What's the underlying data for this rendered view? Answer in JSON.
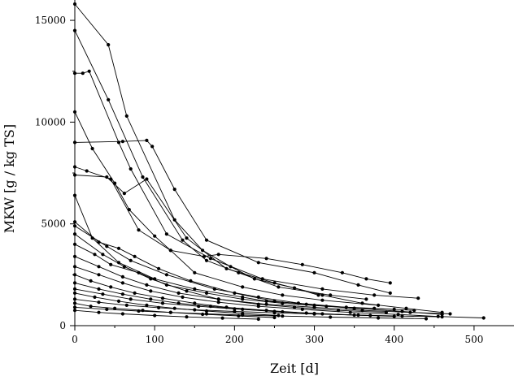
{
  "chart_data": {
    "type": "line",
    "title": "",
    "xlabel": "Zeit [d]",
    "ylabel": "MKW [g / kg TS]",
    "xlim": [
      0,
      550
    ],
    "ylim": [
      0,
      16000
    ],
    "x_ticks": [
      0,
      100,
      200,
      300,
      400,
      500
    ],
    "y_ticks": [
      0,
      5000,
      10000,
      15000
    ],
    "x_tick_labels": [
      "0",
      "100",
      "200",
      "300",
      "400",
      "500"
    ],
    "y_tick_labels": [
      "0",
      "5000",
      "10000",
      "15000"
    ],
    "grid": false,
    "legend": false,
    "line_color": "#000000",
    "series": [
      {
        "x": [
          0,
          42,
          65,
          125,
          160,
          195,
          225,
          275,
          305
        ],
        "y": [
          15800,
          13800,
          10300,
          5200,
          3700,
          2900,
          2300,
          1850,
          1500
        ]
      },
      {
        "x": [
          0,
          42,
          85,
          135,
          165,
          205,
          255,
          320,
          365
        ],
        "y": [
          14500,
          11100,
          7300,
          4200,
          3200,
          2600,
          1900,
          1500,
          1300
        ]
      },
      {
        "x": [
          0,
          10,
          18,
          55,
          70,
          115,
          170,
          235,
          310,
          375,
          430
        ],
        "y": [
          12400,
          12400,
          12500,
          9000,
          7700,
          4500,
          3300,
          2300,
          1800,
          1500,
          1350
        ]
      },
      {
        "x": [
          0,
          22,
          50,
          68,
          100,
          120,
          150,
          210,
          260,
          310,
          380
        ],
        "y": [
          10500,
          8700,
          7000,
          5700,
          4400,
          3700,
          2600,
          1900,
          1500,
          1250,
          1000
        ]
      },
      {
        "x": [
          0,
          60,
          90,
          97,
          125,
          165,
          230,
          300,
          355,
          395
        ],
        "y": [
          9000,
          9050,
          9100,
          8800,
          6700,
          4200,
          3100,
          2600,
          2000,
          1600
        ]
      },
      {
        "x": [
          0,
          15,
          45,
          80,
          120,
          162,
          180,
          240,
          285,
          335,
          365,
          395
        ],
        "y": [
          7800,
          7600,
          7200,
          4700,
          3700,
          3400,
          3500,
          3300,
          3000,
          2600,
          2300,
          2100
        ]
      },
      {
        "x": [
          0,
          40,
          62,
          90,
          140,
          190,
          250,
          310,
          360,
          415,
          460
        ],
        "y": [
          7400,
          7300,
          6500,
          7200,
          4300,
          2800,
          2100,
          1500,
          1100,
          850,
          650
        ]
      },
      {
        "x": [
          0,
          22,
          55,
          100,
          150,
          210,
          240,
          280,
          340,
          400
        ],
        "y": [
          6400,
          4300,
          3100,
          2300,
          1800,
          1400,
          1200,
          1100,
          900,
          800
        ]
      },
      {
        "x": [
          0,
          30,
          55,
          75,
          105,
          145,
          200,
          250,
          300,
          350
        ],
        "y": [
          5100,
          4100,
          3800,
          3400,
          2800,
          2200,
          1600,
          1200,
          1000,
          850
        ]
      },
      {
        "x": [
          0,
          40,
          70,
          115,
          175,
          230,
          290,
          350,
          410,
          460
        ],
        "y": [
          4900,
          3900,
          3200,
          2500,
          1800,
          1400,
          1050,
          850,
          700,
          550
        ]
      },
      {
        "x": [
          0,
          35,
          62,
          95,
          140,
          180,
          230,
          275,
          330,
          390
        ],
        "y": [
          4500,
          3500,
          2900,
          2300,
          1700,
          1300,
          1050,
          900,
          750,
          650
        ]
      },
      {
        "x": [
          0,
          25,
          45,
          80,
          115,
          165,
          210,
          260,
          315,
          375,
          425
        ],
        "y": [
          4000,
          3500,
          3000,
          2600,
          2000,
          1600,
          1300,
          1100,
          950,
          850,
          750
        ]
      },
      {
        "x": [
          0,
          30,
          60,
          90,
          130,
          180,
          240,
          300,
          360,
          420,
          470
        ],
        "y": [
          3400,
          2900,
          2400,
          2000,
          1600,
          1300,
          1050,
          900,
          750,
          650,
          580
        ]
      },
      {
        "x": [
          0,
          30,
          60,
          95,
          135,
          180,
          230,
          285,
          345,
          405,
          455,
          512
        ],
        "y": [
          2900,
          2500,
          2100,
          1700,
          1400,
          1150,
          950,
          800,
          650,
          550,
          450,
          380
        ]
      },
      {
        "x": [
          0,
          20,
          45,
          75,
          110,
          150,
          190,
          240,
          290
        ],
        "y": [
          2500,
          2200,
          1900,
          1600,
          1350,
          1100,
          900,
          750,
          620
        ]
      },
      {
        "x": [
          0,
          30,
          60,
          95,
          130,
          170,
          210,
          260,
          310,
          370
        ],
        "y": [
          2100,
          1800,
          1550,
          1300,
          1100,
          950,
          800,
          680,
          580,
          500
        ]
      },
      {
        "x": [
          0,
          35,
          70,
          110,
          155,
          200,
          250,
          300,
          350,
          400
        ],
        "y": [
          1800,
          1550,
          1300,
          1100,
          950,
          820,
          700,
          600,
          520,
          460
        ]
      },
      {
        "x": [
          0,
          25,
          55,
          90,
          125,
          165,
          210,
          255
        ],
        "y": [
          1600,
          1400,
          1200,
          1000,
          850,
          720,
          600,
          500
        ]
      },
      {
        "x": [
          0,
          30,
          65,
          105,
          150,
          200,
          250,
          300,
          355,
          410,
          460
        ],
        "y": [
          1300,
          1150,
          1000,
          880,
          780,
          700,
          630,
          570,
          520,
          470,
          430
        ]
      },
      {
        "x": [
          0,
          20,
          50,
          85,
          120,
          160,
          205,
          250
        ],
        "y": [
          1100,
          950,
          850,
          750,
          650,
          560,
          480,
          400
        ]
      },
      {
        "x": [
          0,
          40,
          80,
          120,
          165,
          210,
          260,
          320,
          380,
          440
        ],
        "y": [
          900,
          800,
          720,
          650,
          580,
          520,
          470,
          420,
          380,
          340
        ]
      },
      {
        "x": [
          0,
          30,
          60,
          100,
          140,
          185,
          230
        ],
        "y": [
          750,
          650,
          580,
          500,
          430,
          370,
          320
        ]
      }
    ]
  }
}
